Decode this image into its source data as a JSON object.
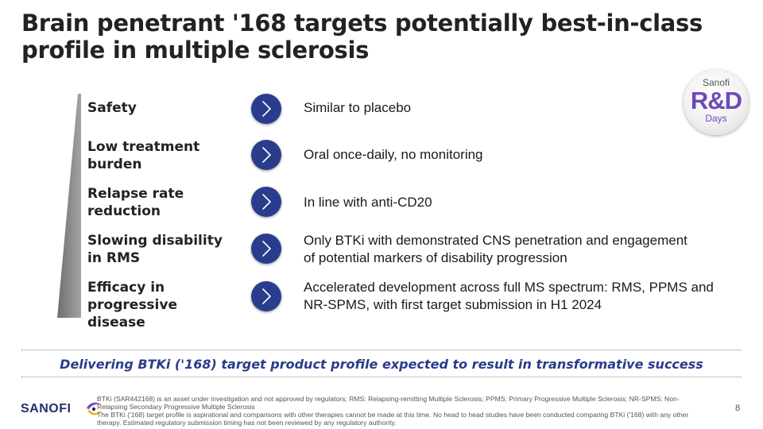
{
  "title": "Brain penetrant '168 targets potentially best-in-class profile in multiple sclerosis",
  "badge": {
    "line1": "Sanofi",
    "line2": "R&D",
    "line3": "Days"
  },
  "rows": [
    {
      "label": "Safety",
      "desc": "Similar to placebo"
    },
    {
      "label": "Low treatment burden",
      "desc": "Oral once-daily, no monitoring"
    },
    {
      "label": "Relapse rate reduction",
      "desc": "In line with anti-CD20"
    },
    {
      "label": "Slowing disability in RMS",
      "desc": "Only BTKi with demonstrated CNS penetration and engagement of potential markers of disability progression"
    },
    {
      "label": "Efficacy in progressive disease",
      "desc": "Accelerated development across full MS spectrum: RMS, PPMS and NR-SPMS, with first target submission in H1 2024"
    }
  ],
  "delivering": "Delivering BTKi ('168) target product profile expected to result in transformative success",
  "footnote": {
    "line1": "BTKi (SAR442168) is an asset under investigation and not approved by regulators; RMS: Relapsing-remitting Multiple Sclerosis; PPMS: Primary Progressive Multiple Sclerosis; NR-SPMS: Non-Relapsing Secondary Progressive Multiple Sclerosis",
    "line2": "The BTKi ('168) target profile is aspirational and comparisons with other therapies cannot be made at this time.  No head to head studies have been conducted comparing BTKi ('168) with any other therapy.  Estimated regulatory submission timing has not been reviewed by any regulatory authority."
  },
  "logo": {
    "text": "SANOFI",
    "icon": "sanofi-bird-icon"
  },
  "page_number": "8",
  "colors": {
    "accent": "#2a3c8c",
    "badge_purple": "#6f49b6",
    "wedge": "#8a8a8a"
  }
}
